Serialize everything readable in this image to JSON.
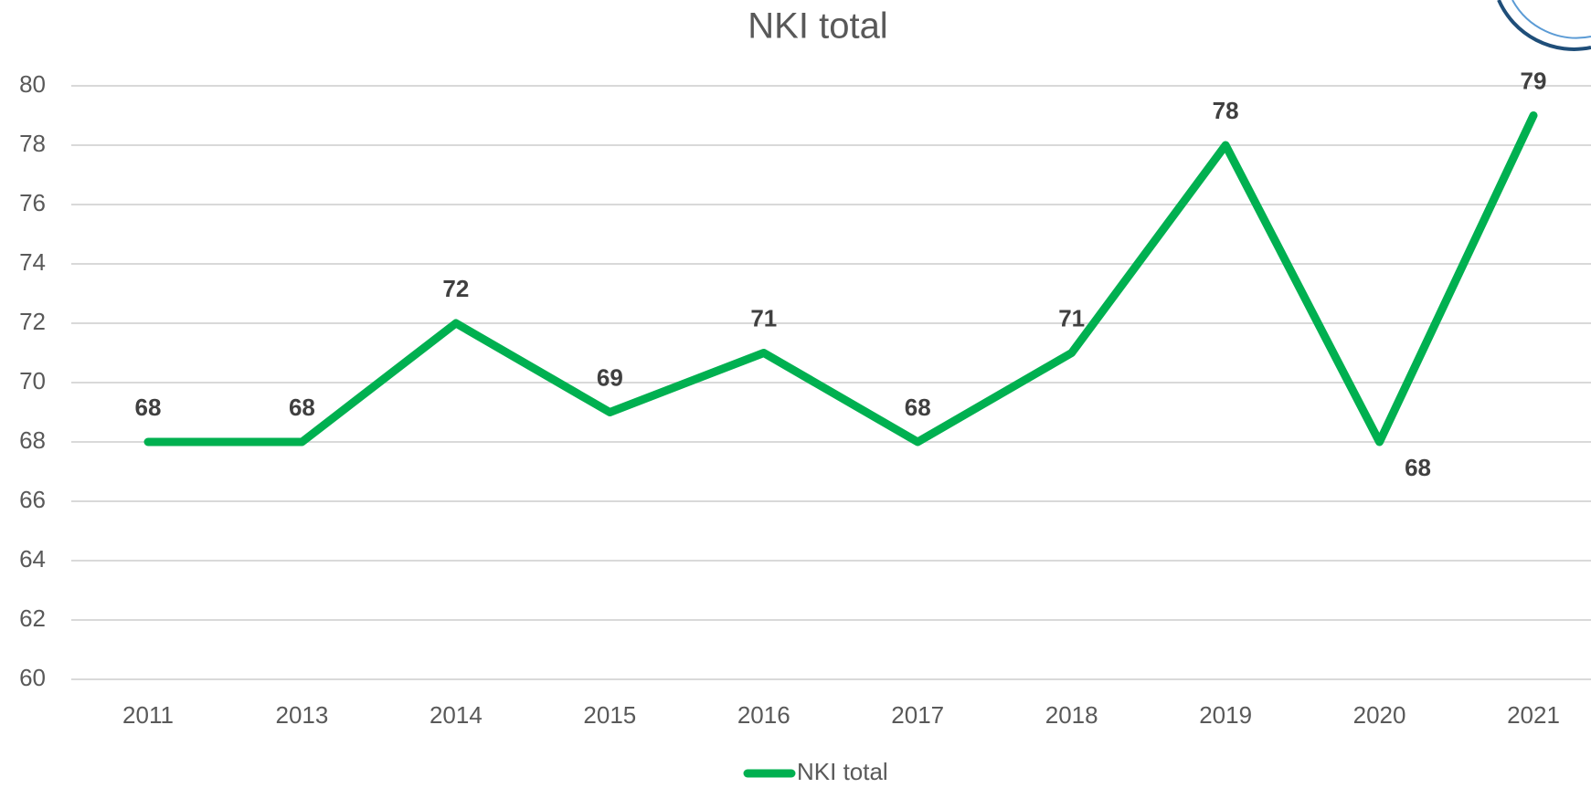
{
  "chart_data": {
    "type": "line",
    "title": "NKI total",
    "categories": [
      "2011",
      "2013",
      "2014",
      "2015",
      "2016",
      "2017",
      "2018",
      "2019",
      "2020",
      "2021"
    ],
    "series": [
      {
        "name": "NKI total",
        "color": "#00b050",
        "values": [
          68,
          68,
          72,
          69,
          71,
          68,
          71,
          78,
          68,
          79
        ]
      }
    ],
    "ylim": [
      60,
      80
    ],
    "yticks": [
      60,
      62,
      64,
      66,
      68,
      70,
      72,
      74,
      76,
      78,
      80
    ],
    "grid": true,
    "legend": "bottom"
  }
}
